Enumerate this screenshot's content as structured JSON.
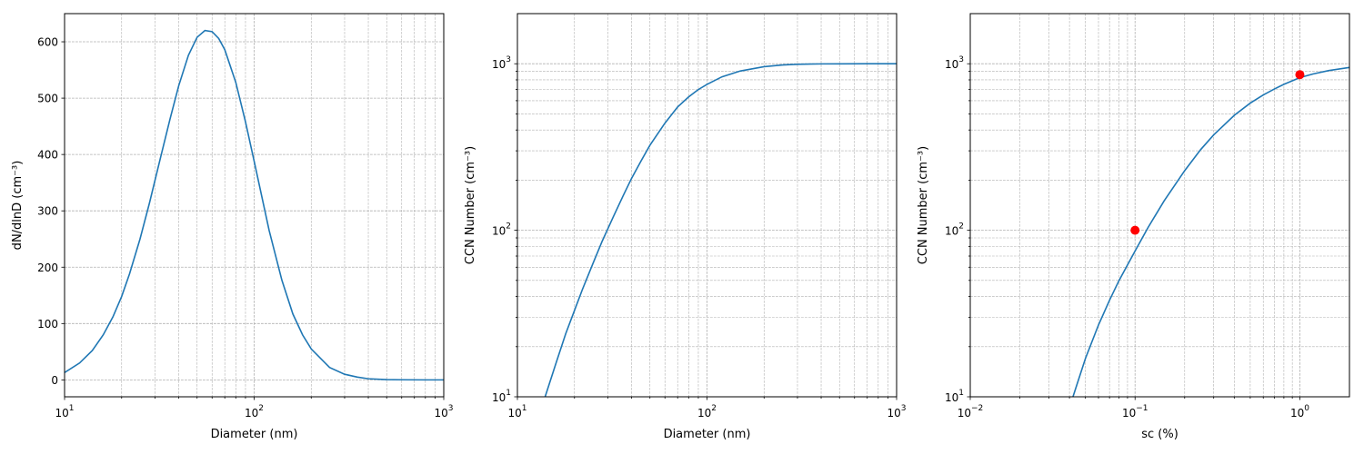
{
  "chart_data": [
    {
      "type": "line",
      "title": "",
      "xlabel": "Diameter (nm)",
      "ylabel": "dN/dlnD (cm⁻³)",
      "xscale": "log",
      "yscale": "linear",
      "xlim": [
        10,
        1000
      ],
      "ylim": [
        -30,
        650
      ],
      "x_ticks": [
        {
          "v": 10,
          "b": "10",
          "e": "1"
        },
        {
          "v": 100,
          "b": "10",
          "e": "2"
        },
        {
          "v": 1000,
          "b": "10",
          "e": "3"
        }
      ],
      "y_ticks": [
        {
          "v": 0,
          "t": "0"
        },
        {
          "v": 100,
          "t": "100"
        },
        {
          "v": 200,
          "t": "200"
        },
        {
          "v": 300,
          "t": "300"
        },
        {
          "v": 400,
          "t": "400"
        },
        {
          "v": 500,
          "t": "500"
        },
        {
          "v": 600,
          "t": "600"
        }
      ],
      "grid": true,
      "series": [
        {
          "color": "#1f77b4",
          "x": [
            10,
            12,
            14,
            16,
            18,
            20,
            22,
            25,
            28,
            32,
            36,
            40,
            45,
            50,
            55,
            60,
            65,
            70,
            80,
            90,
            100,
            120,
            140,
            160,
            180,
            200,
            250,
            300,
            350,
            400,
            500,
            600,
            800,
            1000
          ],
          "y": [
            13,
            30,
            52,
            80,
            112,
            148,
            188,
            250,
            313,
            393,
            463,
            522,
            576,
            608,
            620,
            618,
            606,
            586,
            528,
            458,
            388,
            265,
            177,
            117,
            80,
            55,
            22,
            10,
            5,
            2,
            0.5,
            0.2,
            0,
            0
          ]
        }
      ],
      "scatter": []
    },
    {
      "type": "line",
      "title": "",
      "xlabel": "Diameter (nm)",
      "ylabel": "CCN Number (cm⁻³)",
      "xscale": "log",
      "yscale": "log",
      "xlim": [
        10,
        1000
      ],
      "ylim": [
        10,
        2000
      ],
      "x_ticks": [
        {
          "v": 10,
          "b": "10",
          "e": "1"
        },
        {
          "v": 100,
          "b": "10",
          "e": "2"
        },
        {
          "v": 1000,
          "b": "10",
          "e": "3"
        }
      ],
      "y_ticks": [
        {
          "v": 10,
          "b": "10",
          "e": "1"
        },
        {
          "v": 100,
          "b": "10",
          "e": "2"
        },
        {
          "v": 1000,
          "b": "10",
          "e": "3"
        }
      ],
      "grid": true,
      "series": [
        {
          "color": "#1f77b4",
          "x": [
            14,
            16,
            18,
            20,
            22,
            25,
            28,
            32,
            36,
            40,
            45,
            50,
            60,
            70,
            80,
            90,
            100,
            120,
            150,
            200,
            250,
            300,
            400,
            500,
            700,
            1000
          ],
          "y": [
            10,
            16,
            24,
            33,
            44,
            63,
            86,
            120,
            160,
            205,
            262,
            324,
            440,
            550,
            632,
            700,
            752,
            835,
            905,
            960,
            983,
            993,
            998,
            999,
            1000,
            1000
          ]
        }
      ],
      "scatter": []
    },
    {
      "type": "line",
      "title": "",
      "xlabel": "sc (%)",
      "ylabel": "CCN Number (cm⁻³)",
      "xscale": "log",
      "yscale": "log",
      "xlim": [
        0.01,
        2
      ],
      "ylim": [
        10,
        2000
      ],
      "x_ticks": [
        {
          "v": 0.01,
          "b": "10",
          "e": "−2"
        },
        {
          "v": 0.1,
          "b": "10",
          "e": "−1"
        },
        {
          "v": 1,
          "b": "10",
          "e": "0"
        }
      ],
      "y_ticks": [
        {
          "v": 10,
          "b": "10",
          "e": "1"
        },
        {
          "v": 100,
          "b": "10",
          "e": "2"
        },
        {
          "v": 1000,
          "b": "10",
          "e": "3"
        }
      ],
      "grid": true,
      "series": [
        {
          "color": "#1f77b4",
          "x": [
            0.042,
            0.05,
            0.06,
            0.07,
            0.08,
            0.1,
            0.12,
            0.15,
            0.2,
            0.25,
            0.3,
            0.4,
            0.5,
            0.6,
            0.7,
            0.8,
            1.0,
            1.2,
            1.5,
            2.0
          ],
          "y": [
            10,
            17,
            27,
            38,
            50,
            75,
            104,
            150,
            228,
            305,
            374,
            490,
            580,
            650,
            705,
            752,
            825,
            868,
            910,
            950
          ]
        }
      ],
      "scatter": [
        {
          "color": "#ff0000",
          "x": 0.1,
          "y": 100
        },
        {
          "color": "#ff0000",
          "x": 1.0,
          "y": 860
        }
      ]
    }
  ]
}
